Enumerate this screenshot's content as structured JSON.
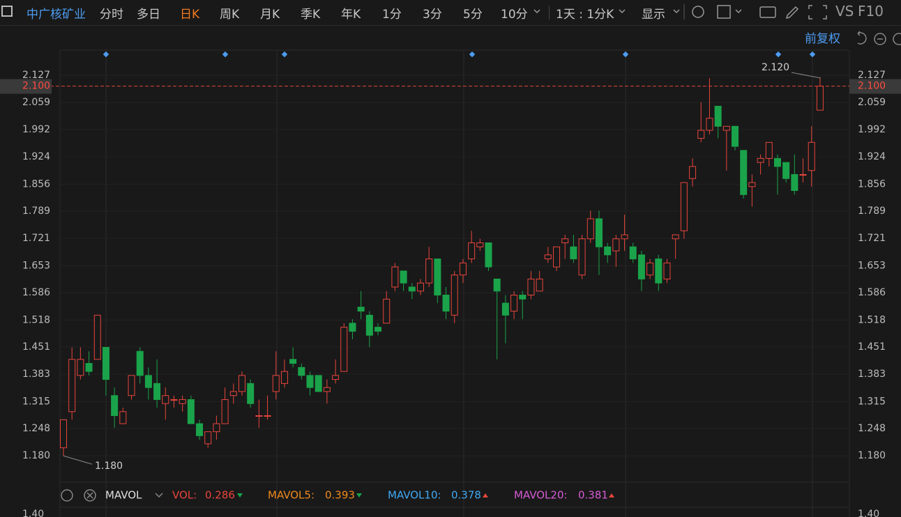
{
  "toolbar": {
    "stock": "中广核矿业",
    "periods": [
      "分时",
      "多日",
      "日K",
      "周K",
      "月K",
      "季K",
      "年K",
      "1分",
      "3分",
      "5分",
      "10分"
    ],
    "interval": "1天 : 1分K",
    "display": "显示",
    "vs": "VS",
    "f10": "F10"
  },
  "chart_data": {
    "type": "candlestick",
    "adjust": "前复权",
    "open": [
      1.2,
      1.29,
      1.38,
      1.41,
      1.42,
      1.45,
      1.33,
      1.26,
      1.33,
      1.44,
      1.38,
      1.36,
      1.31,
      1.32,
      1.31,
      1.32,
      1.26,
      1.21,
      1.24,
      1.26,
      1.33,
      1.34,
      1.36,
      1.28,
      1.28,
      1.34,
      1.36,
      1.42,
      1.4,
      1.38,
      1.38,
      1.34,
      1.37,
      1.39,
      1.51,
      1.55,
      1.53,
      1.5,
      1.51,
      1.6,
      1.64,
      1.6,
      1.59,
      1.61,
      1.67,
      1.58,
      1.53,
      1.63,
      1.67,
      1.7,
      1.71,
      1.62,
      1.56,
      1.54,
      1.58,
      1.58,
      1.59,
      1.67,
      1.65,
      1.71,
      1.7,
      1.63,
      1.72,
      1.77,
      1.7,
      1.69,
      1.72,
      1.7,
      1.68,
      1.63,
      1.67,
      1.62,
      1.72,
      1.74,
      1.87,
      1.97,
      1.99,
      2.05,
      1.99,
      2.0,
      1.94,
      1.85,
      1.91,
      1.92,
      1.92,
      1.91,
      1.88,
      1.88,
      1.89,
      2.04
    ],
    "high": [
      1.27,
      1.45,
      1.45,
      1.44,
      1.53,
      1.45,
      1.35,
      1.3,
      1.38,
      1.45,
      1.4,
      1.42,
      1.35,
      1.33,
      1.33,
      1.33,
      1.27,
      1.24,
      1.28,
      1.35,
      1.36,
      1.39,
      1.37,
      1.32,
      1.33,
      1.44,
      1.42,
      1.45,
      1.41,
      1.39,
      1.38,
      1.37,
      1.42,
      1.51,
      1.52,
      1.59,
      1.54,
      1.51,
      1.59,
      1.66,
      1.64,
      1.61,
      1.62,
      1.7,
      1.67,
      1.6,
      1.64,
      1.67,
      1.74,
      1.72,
      1.71,
      1.62,
      1.58,
      1.59,
      1.59,
      1.64,
      1.64,
      1.7,
      1.7,
      1.73,
      1.73,
      1.73,
      1.79,
      1.79,
      1.71,
      1.73,
      1.78,
      1.71,
      1.69,
      1.67,
      1.68,
      1.67,
      1.73,
      1.86,
      1.92,
      2.06,
      2.12,
      2.05,
      2.0,
      2.0,
      1.94,
      1.88,
      1.93,
      1.96,
      1.93,
      1.91,
      1.93,
      1.92,
      2.0,
      2.12
    ],
    "low": [
      1.18,
      1.27,
      1.37,
      1.38,
      1.42,
      1.33,
      1.25,
      1.26,
      1.32,
      1.36,
      1.32,
      1.3,
      1.27,
      1.3,
      1.29,
      1.26,
      1.22,
      1.2,
      1.22,
      1.26,
      1.31,
      1.33,
      1.3,
      1.25,
      1.27,
      1.32,
      1.35,
      1.4,
      1.37,
      1.33,
      1.34,
      1.31,
      1.36,
      1.39,
      1.47,
      1.52,
      1.45,
      1.48,
      1.51,
      1.59,
      1.59,
      1.57,
      1.58,
      1.6,
      1.56,
      1.52,
      1.51,
      1.61,
      1.66,
      1.69,
      1.64,
      1.42,
      1.46,
      1.52,
      1.52,
      1.57,
      1.59,
      1.66,
      1.64,
      1.67,
      1.66,
      1.62,
      1.71,
      1.63,
      1.66,
      1.65,
      1.69,
      1.66,
      1.59,
      1.62,
      1.59,
      1.61,
      1.67,
      1.72,
      1.85,
      1.96,
      1.98,
      1.97,
      1.89,
      1.94,
      1.82,
      1.8,
      1.88,
      1.9,
      1.83,
      1.86,
      1.83,
      1.86,
      1.85,
      2.04
    ],
    "close": [
      1.27,
      1.42,
      1.42,
      1.39,
      1.53,
      1.37,
      1.28,
      1.29,
      1.38,
      1.38,
      1.35,
      1.32,
      1.33,
      1.32,
      1.32,
      1.26,
      1.23,
      1.24,
      1.26,
      1.32,
      1.34,
      1.38,
      1.31,
      1.28,
      1.28,
      1.38,
      1.39,
      1.41,
      1.38,
      1.35,
      1.34,
      1.35,
      1.38,
      1.5,
      1.49,
      1.54,
      1.48,
      1.49,
      1.57,
      1.65,
      1.61,
      1.59,
      1.61,
      1.67,
      1.58,
      1.54,
      1.63,
      1.66,
      1.71,
      1.71,
      1.65,
      1.59,
      1.53,
      1.58,
      1.57,
      1.62,
      1.62,
      1.68,
      1.7,
      1.72,
      1.67,
      1.72,
      1.77,
      1.7,
      1.68,
      1.72,
      1.73,
      1.67,
      1.62,
      1.66,
      1.61,
      1.66,
      1.73,
      1.86,
      1.9,
      1.99,
      2.02,
      2.0,
      2.0,
      1.95,
      1.83,
      1.86,
      1.92,
      1.96,
      1.9,
      1.87,
      1.84,
      1.88,
      1.96,
      2.1
    ],
    "up_color": "#e8453c",
    "down_color": "#1aa34a",
    "ylim": [
      1.1145,
      2.1894
    ],
    "yticks": [
      2.127,
      2.059,
      1.992,
      1.924,
      1.856,
      1.789,
      1.721,
      1.653,
      1.586,
      1.518,
      1.451,
      1.383,
      1.315,
      1.248,
      {
        "value": 1.18,
        "label": "1.180"
      }
    ],
    "current_price": {
      "value": 2.1,
      "label": "2.100"
    },
    "max_label": {
      "value": 2.12,
      "label": "2.120"
    },
    "min_label": {
      "value": 1.18,
      "label": "1.180"
    }
  },
  "indicator": {
    "name": "MAVOL",
    "items": [
      {
        "label": "VOL:",
        "value": 0.286
      },
      {
        "label": "MAVOL5:",
        "value": 0.393
      },
      {
        "label": "MAVOL10:",
        "value": 0.378
      },
      {
        "label": "MAVOL20:",
        "value": 0.381
      }
    ],
    "axis_top": "1.40"
  }
}
